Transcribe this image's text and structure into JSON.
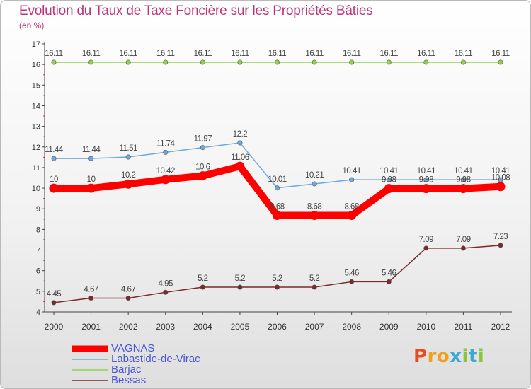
{
  "title": "Evolution du Taux de Taxe Foncière sur les Propriétés Bâties",
  "unit_label": "(en %)",
  "logo": {
    "text": "Proxiti",
    "letter_colors": [
      "#e84c1e",
      "#f2a01b",
      "#f2a01b",
      "#3aa8d8",
      "#8cc43f",
      "#3aa8d8",
      "#8cc43f"
    ]
  },
  "chart_data": {
    "type": "line",
    "title": "Evolution du Taux de Taxe Foncière sur les Propriétés Bâties",
    "ylabel": "(en %)",
    "xlabel": "",
    "x": [
      "2000",
      "2001",
      "2002",
      "2003",
      "2004",
      "2005",
      "2006",
      "2007",
      "2008",
      "2009",
      "2010",
      "2011",
      "2012"
    ],
    "ylim": [
      4,
      17
    ],
    "yticks": [
      "4",
      "5",
      "6",
      "7",
      "8",
      "9",
      "10",
      "11",
      "12",
      "13",
      "14",
      "15",
      "16",
      "17"
    ],
    "grid": false,
    "legend_position": "bottom-left",
    "series": [
      {
        "name": "Bessas",
        "color": "#7a2a2a",
        "values": [
          4.45,
          4.67,
          4.67,
          4.95,
          5.2,
          5.2,
          5.2,
          5.2,
          5.46,
          5.46,
          7.09,
          7.09,
          7.23
        ],
        "labels": [
          "4.45",
          "4.67",
          "4.67",
          "4.95",
          "5.2",
          "5.2",
          "5.2",
          "5.2",
          "5.46",
          "5.46",
          "7.09",
          "7.09",
          "7.23"
        ]
      },
      {
        "name": "Barjac",
        "color": "#8fd14f",
        "values": [
          16.11,
          16.11,
          16.11,
          16.11,
          16.11,
          16.11,
          16.11,
          16.11,
          16.11,
          16.11,
          16.11,
          16.11,
          16.11
        ],
        "labels": [
          "16.11",
          "16.11",
          "16.11",
          "16.11",
          "16.11",
          "16.11",
          "16.11",
          "16.11",
          "16.11",
          "16.11",
          "16.11",
          "16.11",
          "16.11"
        ]
      },
      {
        "name": "Labastide-de-Virac",
        "color": "#6fa8dc",
        "values": [
          11.44,
          11.44,
          11.51,
          11.74,
          11.97,
          12.2,
          10.01,
          10.21,
          10.41,
          10.41,
          10.41,
          10.41,
          10.41
        ],
        "labels": [
          "11.44",
          "11.44",
          "11.51",
          "11.74",
          "11.97",
          "12.2",
          "10.01",
          "10.21",
          "10.41",
          "10.41",
          "10.41",
          "10.41",
          "10.41"
        ]
      },
      {
        "name": "VAGNAS",
        "color": "#ff0000",
        "values": [
          10,
          10,
          10.2,
          10.42,
          10.6,
          11.06,
          8.68,
          8.68,
          8.68,
          9.98,
          9.98,
          9.98,
          10.08
        ],
        "labels": [
          "10",
          "10",
          "10.2",
          "10.42",
          "10.6",
          "11.06",
          "8.68",
          "8.68",
          "8.68",
          "9.98",
          "9.98",
          "9.98",
          "10.08"
        ]
      }
    ],
    "legend": [
      "VAGNAS",
      "Labastide-de-Virac",
      "Barjac",
      "Bessas"
    ]
  }
}
